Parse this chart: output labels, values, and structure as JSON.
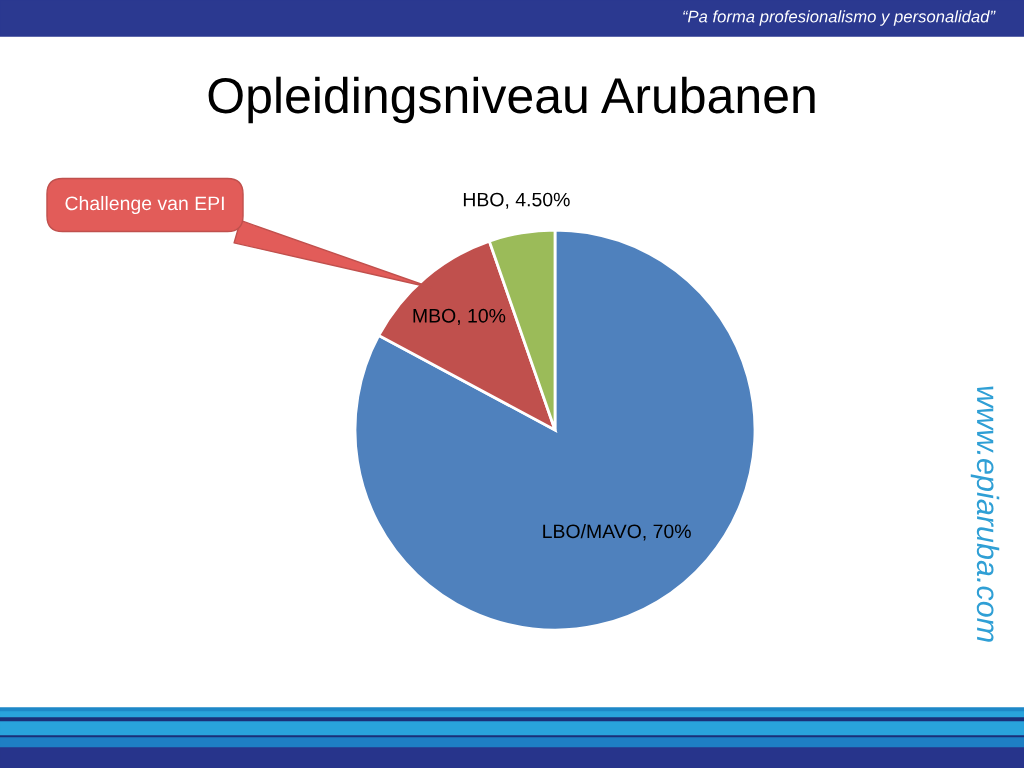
{
  "chart_data": {
    "type": "pie",
    "title": "Opleidingsniveau Arubanen",
    "categories": [
      "LBO/MAVO",
      "MBO",
      "HBO"
    ],
    "values": [
      70,
      10,
      4.5
    ],
    "colors": [
      "#4f81bd",
      "#c0504d",
      "#9bbb59"
    ],
    "value_labels": [
      "70%",
      "10%",
      "4.50%"
    ],
    "annotations": [
      "“Pa forma profesionalismo y personalidad”",
      {
        "text": "Challenge van EPI",
        "x": "MBO"
      },
      "www.epiaruba.com"
    ]
  }
}
